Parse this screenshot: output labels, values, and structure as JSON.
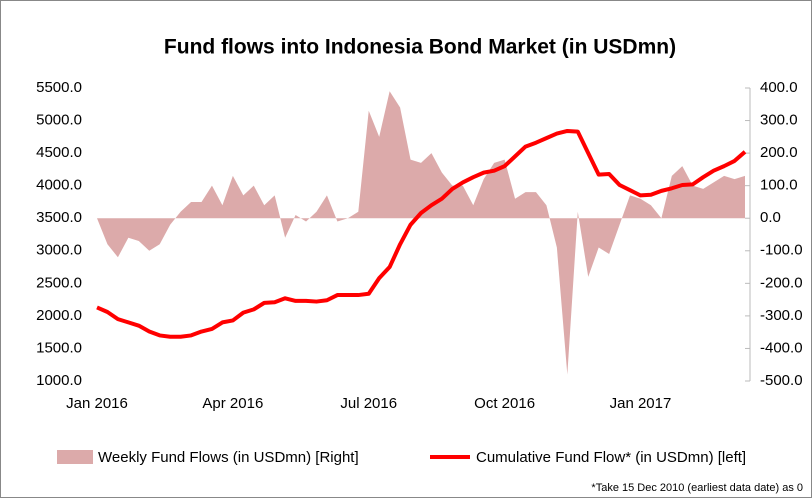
{
  "chart_data": {
    "type": "line",
    "title": "Fund flows into Indonesia Bond Market (in USDmn)",
    "categories": [
      "Jan 2016",
      null,
      null,
      null,
      null,
      null,
      null,
      null,
      null,
      null,
      null,
      null,
      null,
      "Apr 2016",
      null,
      null,
      null,
      null,
      null,
      null,
      null,
      null,
      null,
      null,
      null,
      null,
      "Jul 2016",
      null,
      null,
      null,
      null,
      null,
      null,
      null,
      null,
      null,
      null,
      null,
      null,
      "Oct 2016",
      null,
      null,
      null,
      null,
      null,
      null,
      null,
      null,
      null,
      null,
      null,
      null,
      "Jan 2017",
      null,
      null,
      null,
      null,
      null,
      null,
      null,
      null,
      null,
      null
    ],
    "series": [
      {
        "name": "Weekly Fund Flows (in USDmn) [Right]",
        "type": "area",
        "axis": "y2",
        "color": "#dcaaaa",
        "values": [
          0,
          -80,
          -120,
          -60,
          -70,
          -100,
          -80,
          -20,
          20,
          50,
          50,
          100,
          40,
          130,
          70,
          100,
          40,
          70,
          -60,
          10,
          -10,
          20,
          70,
          -10,
          0,
          20,
          330,
          250,
          390,
          340,
          180,
          170,
          200,
          140,
          100,
          100,
          40,
          120,
          170,
          180,
          60,
          80,
          80,
          40,
          -90,
          -480,
          20,
          -180,
          -90,
          -110,
          -20,
          70,
          60,
          40,
          0,
          130,
          160,
          100,
          90,
          110,
          130,
          120,
          130
        ]
      },
      {
        "name": "Cumulative Fund Flow* (in USDmn) [left]",
        "type": "line",
        "color": "#ff0000",
        "values": [
          2130,
          2060,
          1950,
          1900,
          1850,
          1760,
          1700,
          1680,
          1680,
          1700,
          1760,
          1800,
          1900,
          1930,
          2050,
          2100,
          2200,
          2210,
          2270,
          2230,
          2230,
          2220,
          2240,
          2320,
          2320,
          2320,
          2340,
          2580,
          2750,
          3100,
          3400,
          3580,
          3700,
          3800,
          3950,
          4050,
          4130,
          4200,
          4230,
          4300,
          4450,
          4600,
          4660,
          4730,
          4800,
          4840,
          4830,
          4500,
          4170,
          4180,
          4010,
          3930,
          3850,
          3860,
          3920,
          3960,
          4010,
          4020,
          4130,
          4230,
          4300,
          4380,
          4520
        ]
      }
    ],
    "ylim": [
      1000,
      5500
    ],
    "yticks": [
      {
        "value": 1000,
        "label": "1000.0"
      },
      {
        "value": 1500,
        "label": "1500.0"
      },
      {
        "value": 2000,
        "label": "2000.0"
      },
      {
        "value": 2500,
        "label": "2500.0"
      },
      {
        "value": 3000,
        "label": "3000.0"
      },
      {
        "value": 3500,
        "label": "3500.0"
      },
      {
        "value": 4000,
        "label": "4000.0"
      },
      {
        "value": 4500,
        "label": "4500.0"
      },
      {
        "value": 5000,
        "label": "5000.0"
      },
      {
        "value": 5500,
        "label": "5500.0"
      }
    ],
    "y2lim": [
      -500,
      400
    ],
    "y2ticks": [
      {
        "value": -500,
        "label": "-500.0"
      },
      {
        "value": -400,
        "label": "-400.0"
      },
      {
        "value": -300,
        "label": "-300.0"
      },
      {
        "value": -200,
        "label": "-200.0"
      },
      {
        "value": -100,
        "label": "-100.0"
      },
      {
        "value": 0,
        "label": "0.0"
      },
      {
        "value": 100,
        "label": "100.0"
      },
      {
        "value": 200,
        "label": "200.0"
      },
      {
        "value": 300,
        "label": "300.0"
      },
      {
        "value": 400,
        "label": "400.0"
      }
    ],
    "legend": "bottom",
    "note": "*Take 15 Dec 2010 (earliest data date) as 0"
  }
}
